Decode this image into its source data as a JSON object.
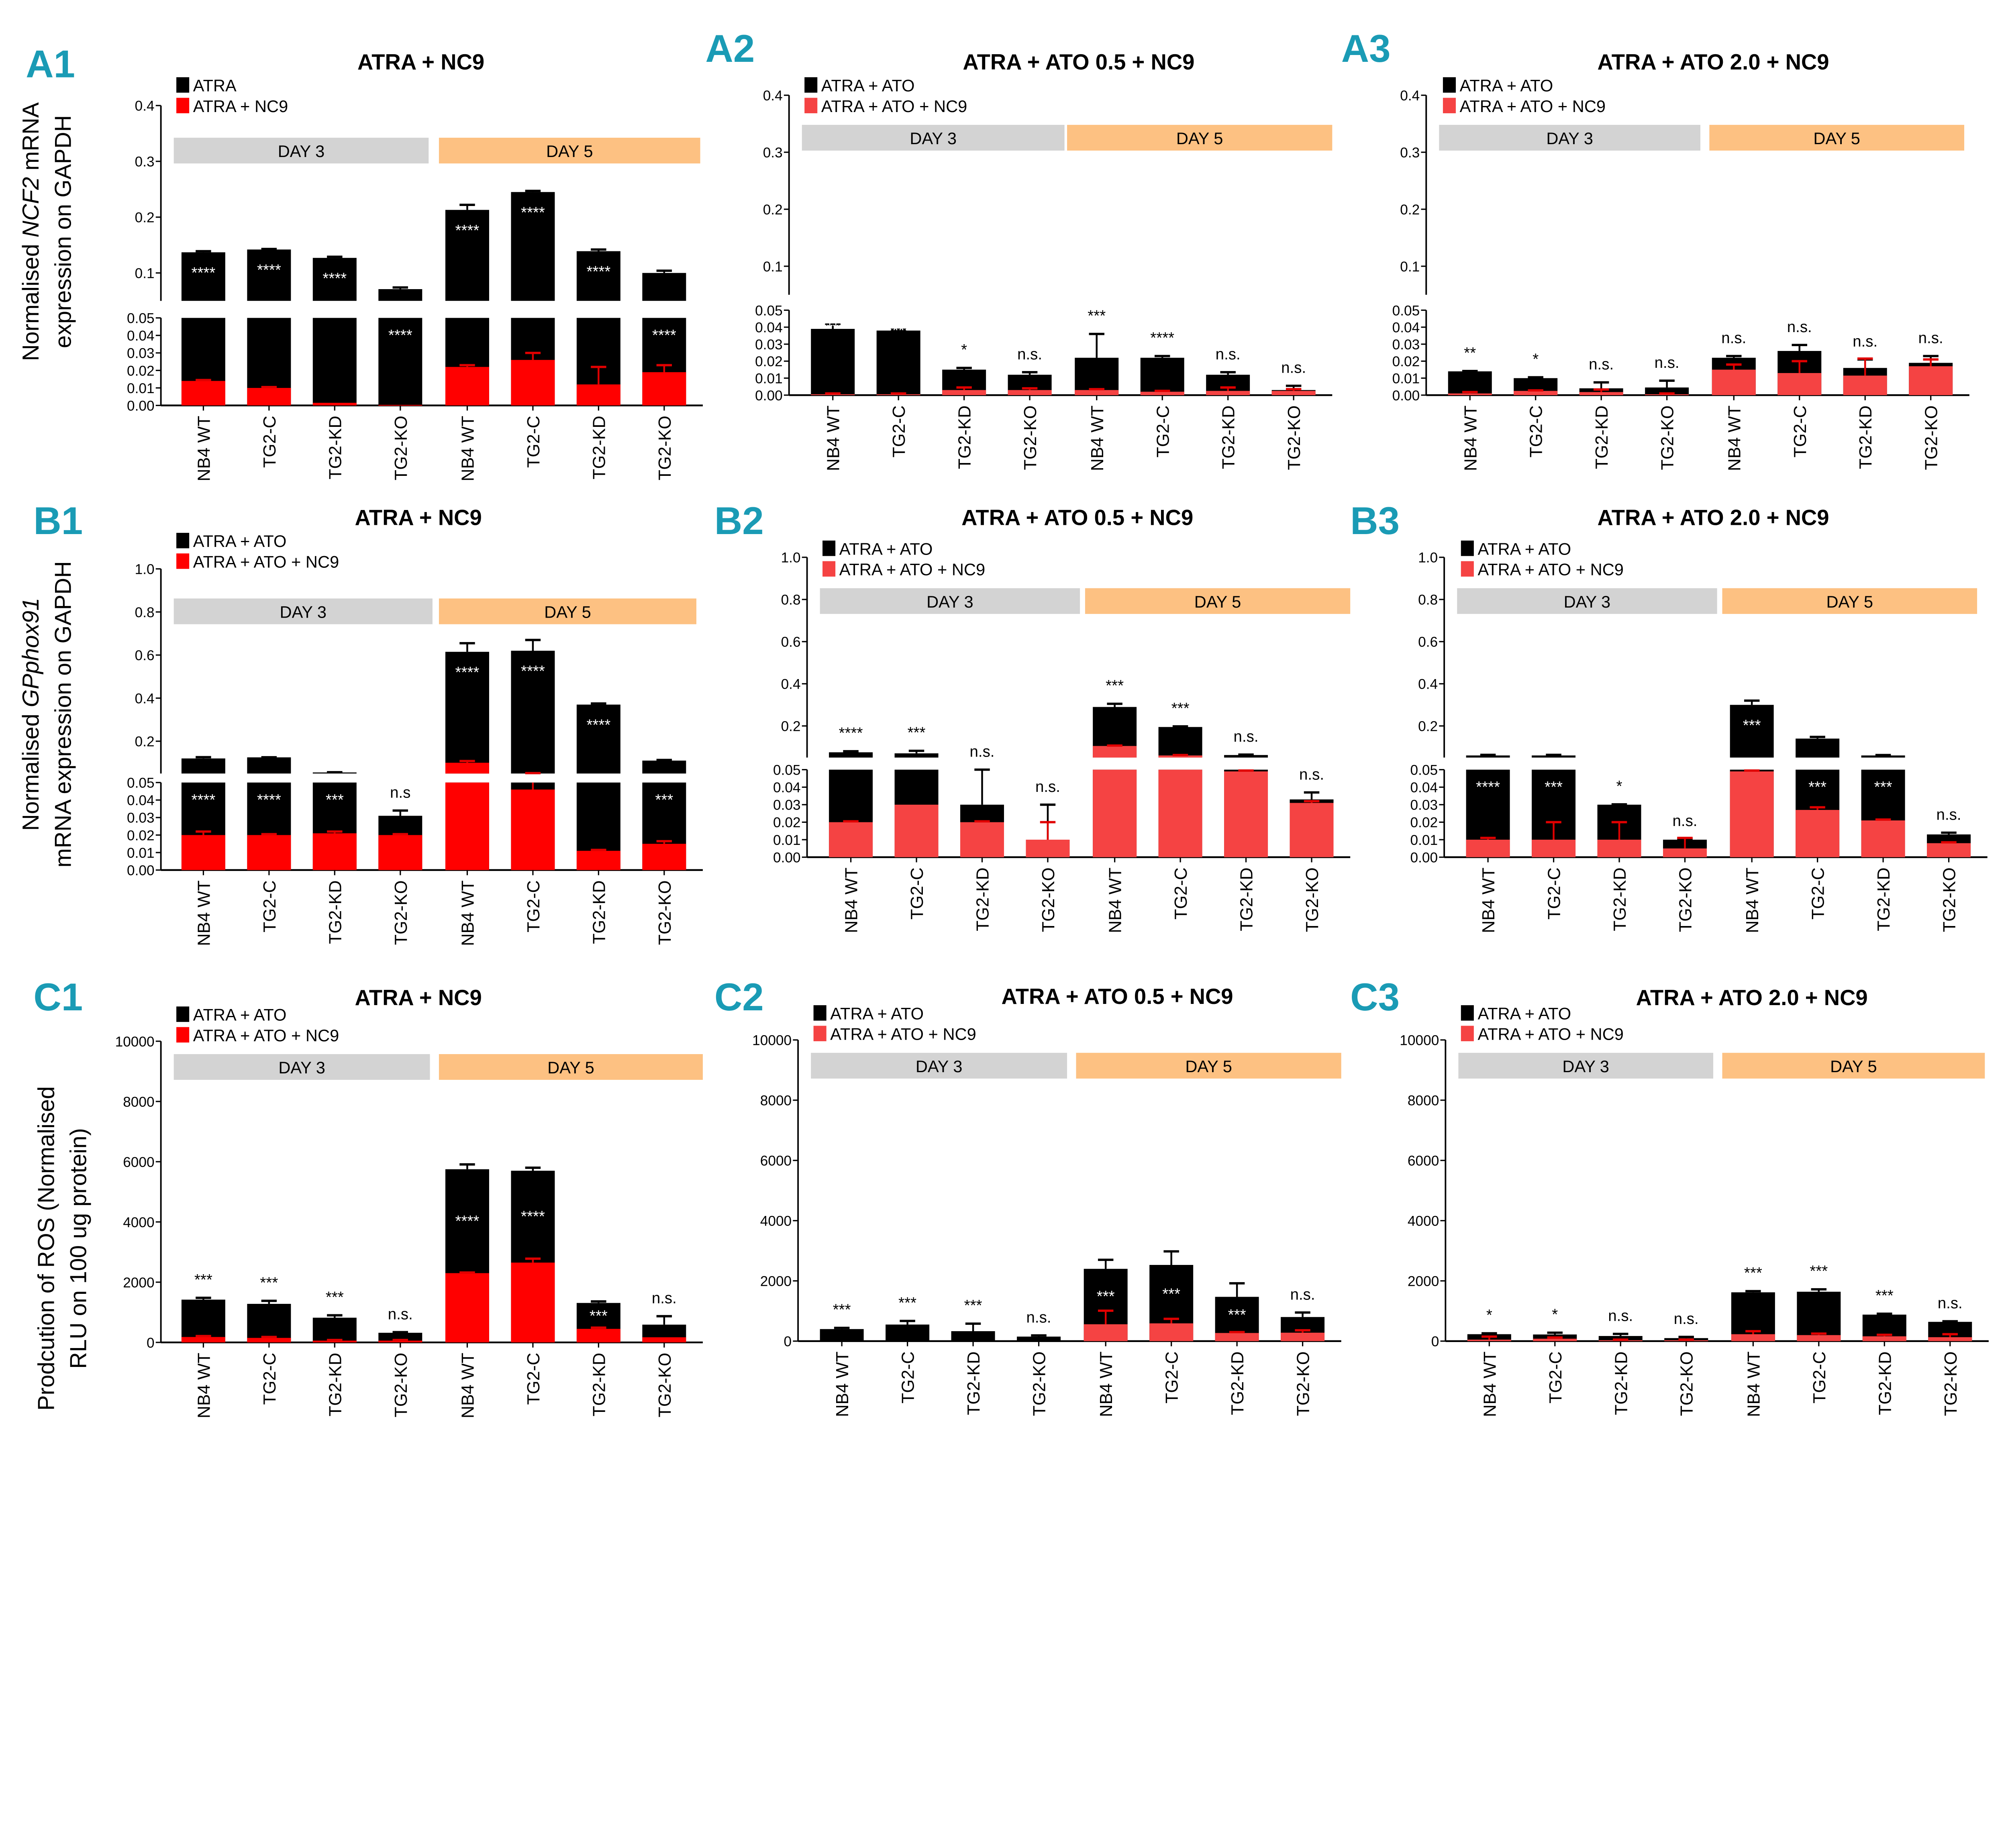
{
  "colors": {
    "panel_label": "#1a9bb5",
    "black": "#000000",
    "red_strong": "#ff0000",
    "red_light": "#f54343",
    "day3_band": "#d3d3d3",
    "day5_band": "#fdc182"
  },
  "y_axis_titles": {
    "A": {
      "prefix": "Normalised ",
      "italic": "NCF2",
      "suffix": " mRNA",
      "line2": "expression on GAPDH"
    },
    "B": {
      "prefix": "Normalised ",
      "italic": "GPphox91",
      "suffix": "",
      "line2": "mRNA expression on GAPDH"
    },
    "C": {
      "prefix": "Prodcution of ROS (Normalised",
      "italic": "",
      "suffix": "",
      "line2": "RLU on 100 ug protein)"
    }
  },
  "chart_data": [
    {
      "id": "A1",
      "type": "bar",
      "title": "ATRA + NC9",
      "groups": [
        "DAY 3",
        "DAY 5"
      ],
      "categories": [
        "NB4 WT",
        "TG2-C",
        "TG2-KD",
        "TG2-KO",
        "NB4 WT",
        "TG2-C",
        "TG2-KD",
        "TG2-KO"
      ],
      "axis_break": 0.05,
      "ylim": [
        0,
        0.4
      ],
      "yticks_top": [
        "0.1",
        "0.2",
        "0.3",
        "0.4"
      ],
      "yticks_bottom": [
        "0.00",
        "0.01",
        "0.02",
        "0.03",
        "0.04",
        "0.05"
      ],
      "series": [
        {
          "name": "ATRA",
          "color": "black",
          "values": [
            0.137,
            0.142,
            0.127,
            0.071,
            0.213,
            0.245,
            0.139,
            0.1
          ],
          "errors": [
            0.002,
            0.001,
            0.002,
            0.003,
            0.009,
            0.002,
            0.003,
            0.004
          ]
        },
        {
          "name": "ATRA + NC9",
          "color": "red_strong",
          "values": [
            0.014,
            0.01,
            0.0015,
            0.0003,
            0.022,
            0.026,
            0.012,
            0.019
          ],
          "errors": [
            0.0005,
            0.0005,
            0,
            0,
            0.001,
            0.004,
            0.01,
            0.004
          ]
        }
      ],
      "significance": [
        "****",
        "****",
        "****",
        "****",
        "****",
        "****",
        "****",
        "****"
      ],
      "significance_position": [
        "inside",
        "inside",
        "inside",
        "inside",
        "inside",
        "inside",
        "inside",
        "inside"
      ]
    },
    {
      "id": "A2",
      "type": "bar",
      "title": "ATRA + ATO 0.5 + NC9",
      "groups": [
        "DAY 3",
        "DAY 5"
      ],
      "categories": [
        "NB4 WT",
        "TG2-C",
        "TG2-KD",
        "TG2-KO",
        "NB4 WT",
        "TG2-C",
        "TG2-KD",
        "TG2-KO"
      ],
      "axis_break": 0.05,
      "ylim": [
        0,
        0.4
      ],
      "yticks_top": [
        "0.1",
        "0.2",
        "0.3",
        "0.4"
      ],
      "yticks_bottom": [
        "0.00",
        "0.01",
        "0.02",
        "0.03",
        "0.04",
        "0.05"
      ],
      "series": [
        {
          "name": "ATRA + ATO",
          "color": "black",
          "values": [
            0.039,
            0.038,
            0.015,
            0.012,
            0.022,
            0.022,
            0.012,
            0.003
          ],
          "errors": [
            0.0025,
            0.0005,
            0.001,
            0.0015,
            0.014,
            0.001,
            0.0015,
            0.0025
          ]
        },
        {
          "name": "ATRA + ATO + NC9",
          "color": "red_light",
          "values": [
            0.0005,
            0.0005,
            0.003,
            0.003,
            0.003,
            0.002,
            0.0025,
            0.0025
          ],
          "errors": [
            0.0005,
            0.0005,
            0.0015,
            0.001,
            0.0005,
            0.0005,
            0.002,
            0.001
          ]
        }
      ],
      "significance": [
        "****",
        "****",
        "*",
        "n.s.",
        "***",
        "****",
        "n.s.",
        "n.s."
      ],
      "significance_position": [
        "inside",
        "inside",
        "above",
        "above",
        "above",
        "above",
        "above",
        "above"
      ]
    },
    {
      "id": "A3",
      "type": "bar",
      "title": "ATRA + ATO 2.0 + NC9",
      "groups": [
        "DAY 3",
        "DAY 5"
      ],
      "categories": [
        "NB4 WT",
        "TG2-C",
        "TG2-KD",
        "TG2-KO",
        "NB4 WT",
        "TG2-C",
        "TG2-KD",
        "TG2-KO"
      ],
      "axis_break": 0.05,
      "ylim": [
        0,
        0.4
      ],
      "yticks_top": [
        "0.1",
        "0.2",
        "0.3",
        "0.4"
      ],
      "yticks_bottom": [
        "0.00",
        "0.01",
        "0.02",
        "0.03",
        "0.04",
        "0.05"
      ],
      "series": [
        {
          "name": "ATRA + ATO",
          "color": "black",
          "values": [
            0.014,
            0.01,
            0.004,
            0.0045,
            0.022,
            0.026,
            0.016,
            0.019
          ],
          "errors": [
            0.0002,
            0.0005,
            0.0035,
            0.004,
            0.001,
            0.0035,
            0.005,
            0.004
          ]
        },
        {
          "name": "ATRA + ATO + NC9",
          "color": "red_light",
          "values": [
            0.001,
            0.0025,
            0.0018,
            0.0005,
            0.015,
            0.013,
            0.0115,
            0.017
          ],
          "errors": [
            0.0008,
            0.0003,
            0.0015,
            0.0005,
            0.003,
            0.007,
            0.01,
            0.004
          ]
        }
      ],
      "significance": [
        "**",
        "*",
        "n.s.",
        "n.s.",
        "n.s.",
        "n.s.",
        "n.s.",
        "n.s."
      ],
      "significance_position": [
        "above",
        "above",
        "above",
        "above",
        "above",
        "above",
        "above",
        "above"
      ]
    },
    {
      "id": "B1",
      "type": "bar",
      "title": "ATRA + NC9",
      "groups": [
        "DAY 3",
        "DAY 5"
      ],
      "categories": [
        "NB4 WT",
        "TG2-C",
        "TG2-KD",
        "TG2-KO",
        "NB4 WT",
        "TG2-C",
        "TG2-KD",
        "TG2-KO"
      ],
      "axis_break": 0.05,
      "ylim": [
        0,
        1.0
      ],
      "yticks_top": [
        "0.2",
        "0.4",
        "0.6",
        "0.8",
        "1.0"
      ],
      "yticks_bottom": [
        "0.00",
        "0.01",
        "0.02",
        "0.03",
        "0.04",
        "0.05"
      ],
      "series": [
        {
          "name": "ATRA + ATO",
          "color": "black",
          "values": [
            0.12,
            0.125,
            0.055,
            0.031,
            0.615,
            0.62,
            0.37,
            0.11
          ],
          "errors": [
            0.006,
            0.0005,
            0.001,
            0.003,
            0.04,
            0.05,
            0.005,
            0.003
          ]
        },
        {
          "name": "ATRA + ATO + NC9",
          "color": "red_strong",
          "values": [
            0.02,
            0.02,
            0.021,
            0.02,
            0.1,
            0.046,
            0.011,
            0.015
          ],
          "errors": [
            0.002,
            0.0005,
            0.001,
            0.0005,
            0.008,
            0.006,
            0.0005,
            0.0015
          ]
        }
      ],
      "significance": [
        "****",
        "****",
        "***",
        "n.s",
        "****",
        "****",
        "****",
        "***"
      ],
      "significance_position": [
        "inside",
        "inside",
        "inside",
        "above",
        "inside",
        "inside",
        "inside",
        "inside"
      ]
    },
    {
      "id": "B2",
      "type": "bar",
      "title": "ATRA + ATO 0.5 + NC9",
      "groups": [
        "DAY 3",
        "DAY 5"
      ],
      "categories": [
        "NB4 WT",
        "TG2-C",
        "TG2-KD",
        "TG2-KO",
        "NB4 WT",
        "TG2-C",
        "TG2-KD",
        "TG2-KO"
      ],
      "axis_break": 0.05,
      "ylim": [
        0,
        1.0
      ],
      "yticks_top": [
        "0.2",
        "0.4",
        "0.6",
        "0.8",
        "1.0"
      ],
      "yticks_bottom": [
        "0.00",
        "0.01",
        "0.02",
        "0.03",
        "0.04",
        "0.05"
      ],
      "series": [
        {
          "name": "ATRA + ATO",
          "color": "black",
          "values": [
            0.075,
            0.07,
            0.03,
            0.01,
            0.29,
            0.195,
            0.062,
            0.033
          ],
          "errors": [
            0.005,
            0.012,
            0.02,
            0.02,
            0.015,
            0.003,
            0.002,
            0.004
          ]
        },
        {
          "name": "ATRA + ATO + NC9",
          "color": "red_light",
          "values": [
            0.02,
            0.03,
            0.02,
            0.01,
            0.105,
            0.06,
            0.049,
            0.031
          ],
          "errors": [
            0.0005,
            0,
            0.0005,
            0.01,
            0.002,
            0.002,
            0.0005,
            0.001
          ]
        }
      ],
      "significance": [
        "****",
        "***",
        "n.s.",
        "n.s.",
        "***",
        "***",
        "n.s.",
        "n.s."
      ],
      "significance_position": [
        "above",
        "above",
        "above",
        "above",
        "above",
        "above",
        "above",
        "above"
      ]
    },
    {
      "id": "B3",
      "type": "bar",
      "title": "ATRA + ATO 2.0 + NC9",
      "groups": [
        "DAY 3",
        "DAY 5"
      ],
      "categories": [
        "NB4 WT",
        "TG2-C",
        "TG2-KD",
        "TG2-KO",
        "NB4 WT",
        "TG2-C",
        "TG2-KD",
        "TG2-KO"
      ],
      "axis_break": 0.05,
      "ylim": [
        0,
        1.0
      ],
      "yticks_top": [
        "0.2",
        "0.4",
        "0.6",
        "0.8",
        "1.0"
      ],
      "yticks_bottom": [
        "0.00",
        "0.01",
        "0.02",
        "0.03",
        "0.04",
        "0.05"
      ],
      "series": [
        {
          "name": "ATRA + ATO",
          "color": "black",
          "values": [
            0.06,
            0.06,
            0.03,
            0.01,
            0.3,
            0.14,
            0.06,
            0.013
          ],
          "errors": [
            0.003,
            0.003,
            0.0002,
            0.0005,
            0.02,
            0.008,
            0.002,
            0.001
          ]
        },
        {
          "name": "ATRA + ATO + NC9",
          "color": "red_light",
          "values": [
            0.01,
            0.01,
            0.01,
            0.005,
            0.049,
            0.027,
            0.021,
            0.008
          ],
          "errors": [
            0.001,
            0.01,
            0.01,
            0.006,
            0.0005,
            0.0015,
            0.0005,
            0.0005
          ]
        }
      ],
      "significance": [
        "****",
        "***",
        "*",
        "n.s.",
        "***",
        "***",
        "***",
        "n.s."
      ],
      "significance_position": [
        "inside",
        "inside",
        "above",
        "above",
        "inside",
        "inside",
        "inside",
        "above"
      ]
    },
    {
      "id": "C1",
      "type": "bar",
      "title": "ATRA + NC9",
      "groups": [
        "DAY 3",
        "DAY 5"
      ],
      "categories": [
        "NB4 WT",
        "TG2-C",
        "TG2-KD",
        "TG2-KO",
        "NB4 WT",
        "TG2-C",
        "TG2-KD",
        "TG2-KO"
      ],
      "ylim": [
        0,
        10000
      ],
      "yticks": [
        "0",
        "2000",
        "4000",
        "6000",
        "8000",
        "10000"
      ],
      "series": [
        {
          "name": "ATRA + ATO",
          "color": "black",
          "values": [
            1420,
            1280,
            820,
            320,
            5750,
            5700,
            1310,
            590
          ],
          "errors": [
            60,
            100,
            80,
            20,
            160,
            100,
            50,
            280
          ]
        },
        {
          "name": "ATRA + ATO + NC9",
          "color": "red_strong",
          "values": [
            180,
            150,
            60,
            60,
            2300,
            2650,
            450,
            170
          ],
          "errors": [
            30,
            30,
            20,
            20,
            20,
            130,
            40,
            0
          ]
        }
      ],
      "significance": [
        "***",
        "***",
        "***",
        "n.s.",
        "****",
        "****",
        "***",
        "n.s."
      ],
      "significance_position": [
        "above",
        "above",
        "above",
        "above",
        "inside",
        "inside",
        "inside",
        "above"
      ]
    },
    {
      "id": "C2",
      "type": "bar",
      "title": "ATRA + ATO 0.5 + NC9",
      "groups": [
        "DAY 3",
        "DAY 5"
      ],
      "categories": [
        "NB4 WT",
        "TG2-C",
        "TG2-KD",
        "TG2-KO",
        "NB4 WT",
        "TG2-C",
        "TG2-KD",
        "TG2-KO"
      ],
      "ylim": [
        0,
        10000
      ],
      "yticks": [
        "0",
        "2000",
        "4000",
        "6000",
        "8000",
        "10000"
      ],
      "series": [
        {
          "name": "ATRA + ATO",
          "color": "black",
          "values": [
            400,
            550,
            330,
            150,
            2400,
            2530,
            1470,
            800
          ],
          "errors": [
            40,
            120,
            250,
            40,
            300,
            450,
            450,
            150
          ]
        },
        {
          "name": "ATRA + ATO + NC9",
          "color": "red_light",
          "values": [
            0,
            0,
            0,
            0,
            560,
            590,
            270,
            280
          ],
          "errors": [
            0,
            0,
            0,
            0,
            450,
            150,
            30,
            80
          ]
        }
      ],
      "significance": [
        "***",
        "***",
        "***",
        "n.s.",
        "***",
        "***",
        "***",
        "n.s."
      ],
      "significance_position": [
        "above",
        "above",
        "above",
        "above",
        "inside",
        "inside",
        "inside",
        "above"
      ]
    },
    {
      "id": "C3",
      "type": "bar",
      "title": "ATRA + ATO 2.0 + NC9",
      "groups": [
        "DAY 3",
        "DAY 5"
      ],
      "categories": [
        "NB4 WT",
        "TG2-C",
        "TG2-KD",
        "TG2-KO",
        "NB4 WT",
        "TG2-C",
        "TG2-KD",
        "TG2-KO"
      ],
      "ylim": [
        0,
        10000
      ],
      "yticks": [
        "0",
        "2000",
        "4000",
        "6000",
        "8000",
        "10000"
      ],
      "series": [
        {
          "name": "ATRA + ATO",
          "color": "black",
          "values": [
            230,
            220,
            170,
            100,
            1620,
            1640,
            880,
            640
          ],
          "errors": [
            30,
            60,
            70,
            40,
            40,
            80,
            30,
            20
          ]
        },
        {
          "name": "ATRA + ATO + NC9",
          "color": "red_light",
          "values": [
            50,
            80,
            30,
            30,
            230,
            200,
            160,
            130
          ],
          "errors": [
            100,
            40,
            20,
            20,
            100,
            50,
            50,
            100
          ]
        }
      ],
      "significance": [
        "*",
        "*",
        "n.s.",
        "n.s.",
        "***",
        "***",
        "***",
        "n.s."
      ],
      "significance_position": [
        "above",
        "above",
        "above",
        "above",
        "above",
        "above",
        "above",
        "above"
      ]
    }
  ]
}
